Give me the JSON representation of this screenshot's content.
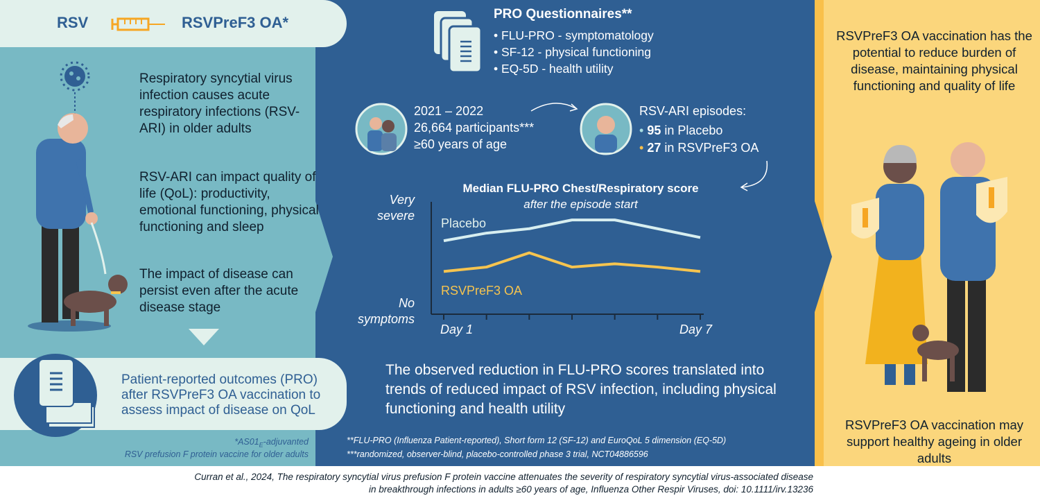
{
  "header": {
    "rsv_label": "RSV",
    "vaccine_label": "RSVPreF3 OA*"
  },
  "left": {
    "para1": "Respiratory syncytial virus infection causes acute respiratory infections (RSV-ARI) in older adults",
    "para2": "RSV-ARI can impact quality of life (QoL): productivity, emotional functioning, physical functioning and sleep",
    "para3": "The impact of disease can persist even after the acute disease stage",
    "pro_box": "Patient-reported outcomes (PRO) after RSVPreF3 OA vaccination to assess impact of disease on QoL",
    "footnote_line1_pre": "*AS01",
    "footnote_line1_sub": "E",
    "footnote_line1_post": "-adjuvanted",
    "footnote_line2": "RSV prefusion F protein vaccine for older adults"
  },
  "middle": {
    "pro_title": "PRO Questionnaires**",
    "pro_items": [
      "FLU-PRO - symptomatology",
      "SF-12 - physical functioning",
      "EQ-5D - health utility"
    ],
    "study_years": "2021 – 2022",
    "study_participants": "26,664 participants***",
    "study_age": "≥60 years of age",
    "episodes_title": "RSV-ARI episodes:",
    "episodes": [
      {
        "count": "95",
        "label": "in Placebo",
        "color": "#a9dde0"
      },
      {
        "count": "27",
        "label": "in RSVPreF3 OA",
        "color": "#f9c04a"
      }
    ],
    "conclusion": "The observed reduction in FLU-PRO scores translated into trends of reduced impact of RSV infection, including physical functioning and health utility",
    "footnote1": "**FLU-PRO (Influenza Patient-reported), Short form 12 (SF-12) and EuroQoL 5 dimension (EQ-5D)",
    "footnote2": "***randomized, observer-blind, placebo-controlled phase 3 trial, NCT04886596"
  },
  "chart_data": {
    "type": "line",
    "title": "Median FLU-PRO Chest/Respiratory score",
    "subtitle": "after the episode start",
    "y_top_label": [
      "Very",
      "severe"
    ],
    "y_bottom_label": [
      "No",
      "symptoms"
    ],
    "x_start_label": "Day 1",
    "x_end_label": "Day 7",
    "x": [
      1,
      2,
      3,
      4,
      5,
      6,
      7
    ],
    "ylim": [
      0,
      1
    ],
    "series": [
      {
        "name": "Placebo",
        "color": "#d7eef0",
        "values": [
          0.67,
          0.74,
          0.78,
          0.86,
          0.86,
          0.78,
          0.7
        ]
      },
      {
        "name": "RSVPreF3 OA",
        "color": "#f6c44f",
        "values": [
          0.39,
          0.43,
          0.56,
          0.43,
          0.46,
          0.43,
          0.39
        ]
      }
    ]
  },
  "right": {
    "top_text": "RSVPreF3 OA vaccination has the potential to reduce burden of disease, maintaining physical functioning and quality of life",
    "bottom_text": "RSVPreF3 OA vaccination may support healthy ageing in older adults"
  },
  "citation": {
    "line1": "Curran et al., 2024, The respiratory syncytial virus prefusion F protein vaccine attenuates the severity of respiratory syncytial virus-associated disease",
    "line2": "in breakthrough infections in adults ≥60 years of age, Influenza Other Respir Viruses, doi: 10.1111/irv.13236"
  },
  "colors": {
    "teal": "#78b9c4",
    "navy": "#2f5f93",
    "mint": "#e2f1ec",
    "yellow": "#f9c04a",
    "light_yellow": "#fbd67c"
  }
}
